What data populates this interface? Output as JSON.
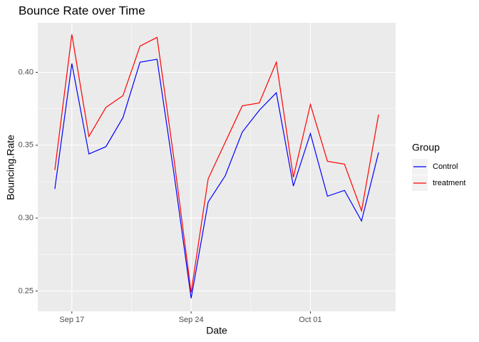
{
  "chart_data": {
    "type": "line",
    "title": "Bounce Rate over Time",
    "x_label": "Date",
    "y_label": "Bouncing.Rate",
    "categories": [
      null,
      "Sep 17",
      null,
      null,
      null,
      null,
      null,
      null,
      "Sep 24",
      null,
      null,
      null,
      null,
      null,
      null,
      "Oct 01",
      null,
      null,
      null,
      null
    ],
    "series": [
      {
        "name": "Control",
        "color": "#0000ff",
        "values": [
          0.32,
          0.406,
          0.344,
          0.349,
          0.369,
          0.407,
          0.409,
          0.33,
          0.245,
          0.311,
          0.329,
          0.359,
          0.374,
          0.386,
          0.322,
          0.358,
          0.315,
          0.319,
          0.298,
          0.345
        ]
      },
      {
        "name": "treatment",
        "color": "#ff0000",
        "values": [
          0.333,
          0.426,
          0.356,
          0.376,
          0.384,
          0.418,
          0.424,
          0.34,
          0.249,
          0.327,
          0.352,
          0.377,
          0.379,
          0.407,
          0.328,
          0.378,
          0.339,
          0.337,
          0.305,
          0.371
        ]
      }
    ],
    "ylim": [
      0.236,
      0.434
    ],
    "yticks": [
      0.25,
      {
        "value": 0.3,
        "label": "0.30"
      },
      0.35,
      {
        "value": 0.4,
        "label": "0.40"
      }
    ],
    "grid": true,
    "legend_title": "Group",
    "legend": "right"
  }
}
